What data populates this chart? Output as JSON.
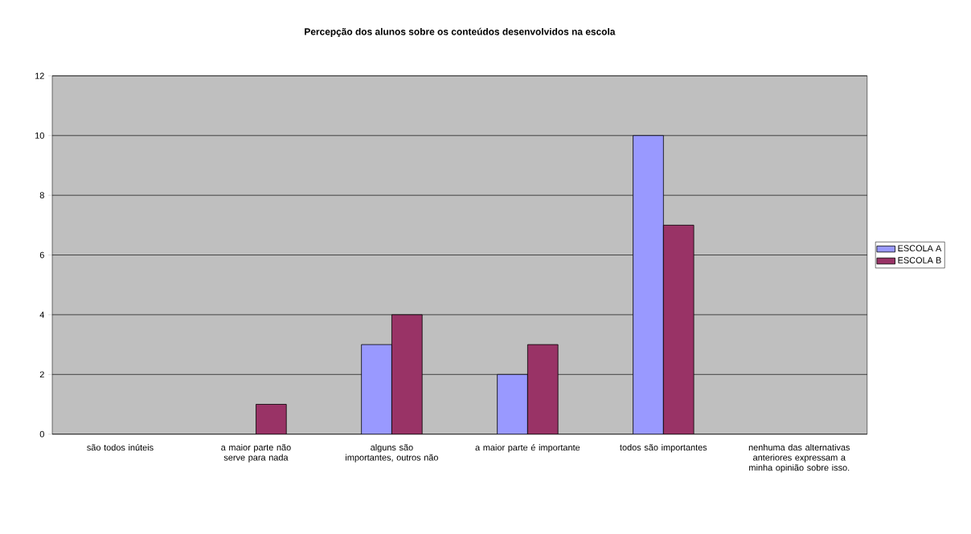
{
  "chart_data": {
    "type": "bar",
    "title": "Percepção dos alunos sobre os conteúdos desenvolvidos na escola",
    "categories": [
      "são todos inúteis",
      "a maior parte não serve para nada",
      "alguns são importantes, outros não",
      "a maior parte é importante",
      "todos são importantes",
      "nenhuma das alternativas anteriores expressam a minha opinião sobre isso."
    ],
    "series": [
      {
        "name": "ESCOLA A",
        "color": "#9999ff",
        "values": [
          0,
          0,
          3,
          2,
          10,
          0
        ]
      },
      {
        "name": "ESCOLA B",
        "color": "#993366",
        "values": [
          0,
          1,
          4,
          3,
          7,
          0
        ]
      }
    ],
    "ylim": [
      0,
      12
    ],
    "yticks": [
      0,
      2,
      4,
      6,
      8,
      10,
      12
    ],
    "grid": "y",
    "legend": "right"
  }
}
